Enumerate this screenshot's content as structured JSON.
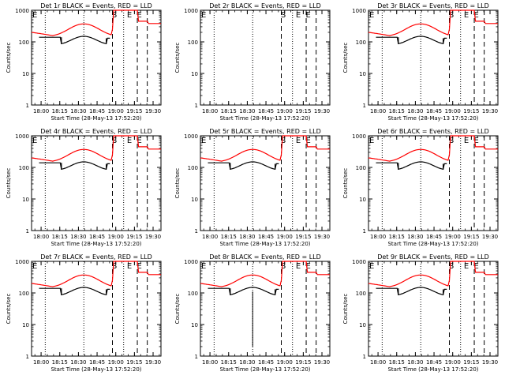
{
  "colors": {
    "events": "#000000",
    "lld": "#ff0000",
    "frame": "#000000"
  },
  "chart_data": [
    {
      "type": "line",
      "title": "Det 1r BLACK = Events, RED = LLD",
      "has_data": true
    },
    {
      "type": "line",
      "title": "Det 2r BLACK = Events, RED = LLD",
      "has_data": false
    },
    {
      "type": "line",
      "title": "Det 3r BLACK = Events, RED = LLD",
      "has_data": true
    },
    {
      "type": "line",
      "title": "Det 4r BLACK = Events, RED = LLD",
      "has_data": true
    },
    {
      "type": "line",
      "title": "Det 5r BLACK = Events, RED = LLD",
      "has_data": true
    },
    {
      "type": "line",
      "title": "Det 6r BLACK = Events, RED = LLD",
      "has_data": true
    },
    {
      "type": "line",
      "title": "Det 7r BLACK = Events, RED = LLD",
      "has_data": true
    },
    {
      "type": "line",
      "title": "Det 8r BLACK = Events, RED = LLD",
      "has_data": true,
      "dip": true
    },
    {
      "type": "line",
      "title": "Det 9r BLACK = Events, RED = LLD",
      "has_data": true
    }
  ],
  "shared": {
    "xlabel": "Start Time (28-May-13 17:52:20)",
    "ylabel": "Counts/sec",
    "x_ticks": [
      "18:00",
      "18:15",
      "18:30",
      "18:45",
      "19:00",
      "19:15",
      "19:30"
    ],
    "x_tick_minutes": [
      7.67,
      22.67,
      37.67,
      52.67,
      67.67,
      82.67,
      97.67
    ],
    "xlim_minutes": [
      0,
      104
    ],
    "y_scale": "log",
    "ylim": [
      1,
      1000
    ],
    "y_ticks": [
      "1",
      "10",
      "100",
      "1000"
    ],
    "y_tick_values": [
      1,
      10,
      100,
      1000
    ],
    "marker_labels": [
      "E",
      "S",
      "E",
      "E"
    ],
    "marker_minutes": [
      0,
      64,
      76,
      84
    ],
    "dotted_lines_minutes": [
      11,
      42,
      74
    ],
    "dashed_lines_minutes": [
      65,
      85,
      93
    ]
  }
}
